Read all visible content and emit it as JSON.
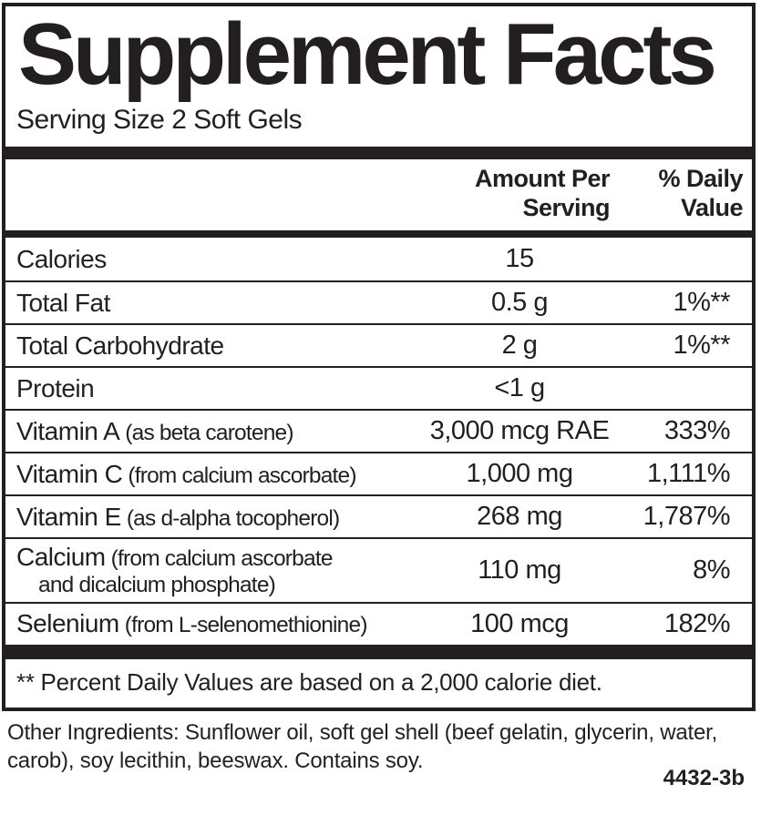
{
  "panel": {
    "title": "Supplement Facts",
    "serving_size": "Serving Size 2 Soft Gels",
    "headers": {
      "amount": [
        "Amount Per",
        "Serving"
      ],
      "daily_value": [
        "% Daily",
        "Value"
      ]
    },
    "rows": [
      {
        "name": "Calories",
        "detail": "",
        "detail2": "",
        "amount": "15",
        "dv": ""
      },
      {
        "name": "Total Fat",
        "detail": "",
        "detail2": "",
        "amount": "0.5 g",
        "dv": "1%**"
      },
      {
        "name": "Total Carbohydrate",
        "detail": "",
        "detail2": "",
        "amount": "2 g",
        "dv": "1%**"
      },
      {
        "name": "Protein",
        "detail": "",
        "detail2": "",
        "amount": "<1 g",
        "dv": ""
      },
      {
        "name": "Vitamin A",
        "detail": "(as beta carotene)",
        "detail2": "",
        "amount": "3,000 mcg RAE",
        "dv": "333%"
      },
      {
        "name": "Vitamin C",
        "detail": "(from calcium ascorbate)",
        "detail2": "",
        "amount": "1,000 mg",
        "dv": "1,111%"
      },
      {
        "name": "Vitamin E",
        "detail": "(as d-alpha tocopherol)",
        "detail2": "",
        "amount": "268 mg",
        "dv": "1,787%"
      },
      {
        "name": "Calcium",
        "detail": "(from calcium ascorbate",
        "detail2": "and dicalcium phosphate)",
        "amount": "110 mg",
        "dv": "8%"
      },
      {
        "name": "Selenium",
        "detail": "(from L-selenomethionine)",
        "detail2": "",
        "amount": "100 mcg",
        "dv": "182%"
      }
    ],
    "footnote": "** Percent Daily Values are based on a 2,000 calorie diet.",
    "other_ingredients": "Other Ingredients: Sunflower oil, soft gel shell (beef gelatin, glycerin, water, carob), soy lecithin, beeswax. Contains soy.",
    "item_code": "4432-3b",
    "colors": {
      "ink": "#231f20",
      "background": "#ffffff"
    }
  }
}
